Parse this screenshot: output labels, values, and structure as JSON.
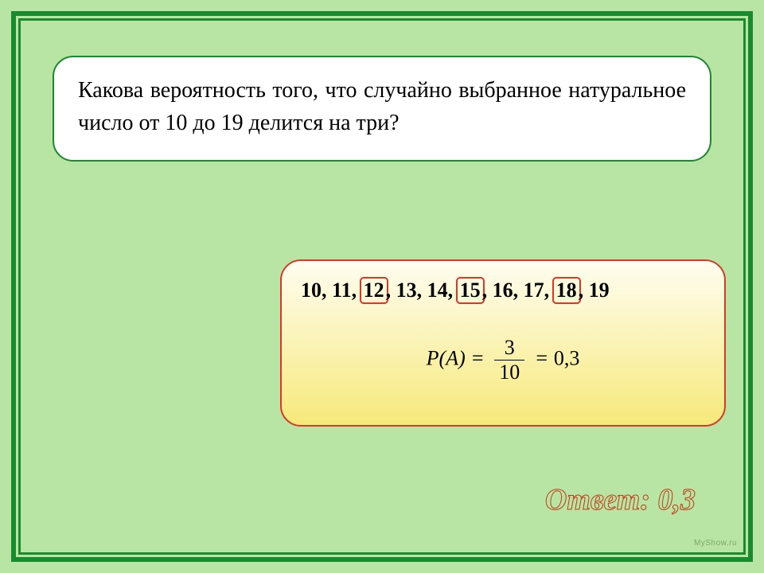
{
  "colors": {
    "page_bg": "#b8e5a3",
    "frame_outer_border": "#1a8a2e",
    "frame_inner_border": "#1a8a2e",
    "question_border": "#1a8a2e",
    "question_bg": "#ffffff",
    "solution_border": "#d83a2a",
    "solution_bg_top": "#fffdf0",
    "solution_bg_bottom": "#f7e97a",
    "highlight_border": "#d83a2a",
    "answer_fill": "#b8e5a3",
    "answer_stroke": "#c23a1a",
    "watermark": "#7aa868"
  },
  "question": {
    "text": "Какова вероятность того, что случайно выбранное натуральное число от 10 до 19 делится на три?"
  },
  "solution": {
    "numbers": [
      "10",
      "11",
      "12",
      "13",
      "14",
      "15",
      "16",
      "17",
      "18",
      "19"
    ],
    "highlighted_indices": [
      2,
      5,
      8
    ],
    "formula": {
      "lhs": "P(A)",
      "numerator": "3",
      "denominator": "10",
      "result": "0,3"
    }
  },
  "answer": {
    "label": "Ответ: 0,3"
  },
  "watermark": "MyShow.ru"
}
